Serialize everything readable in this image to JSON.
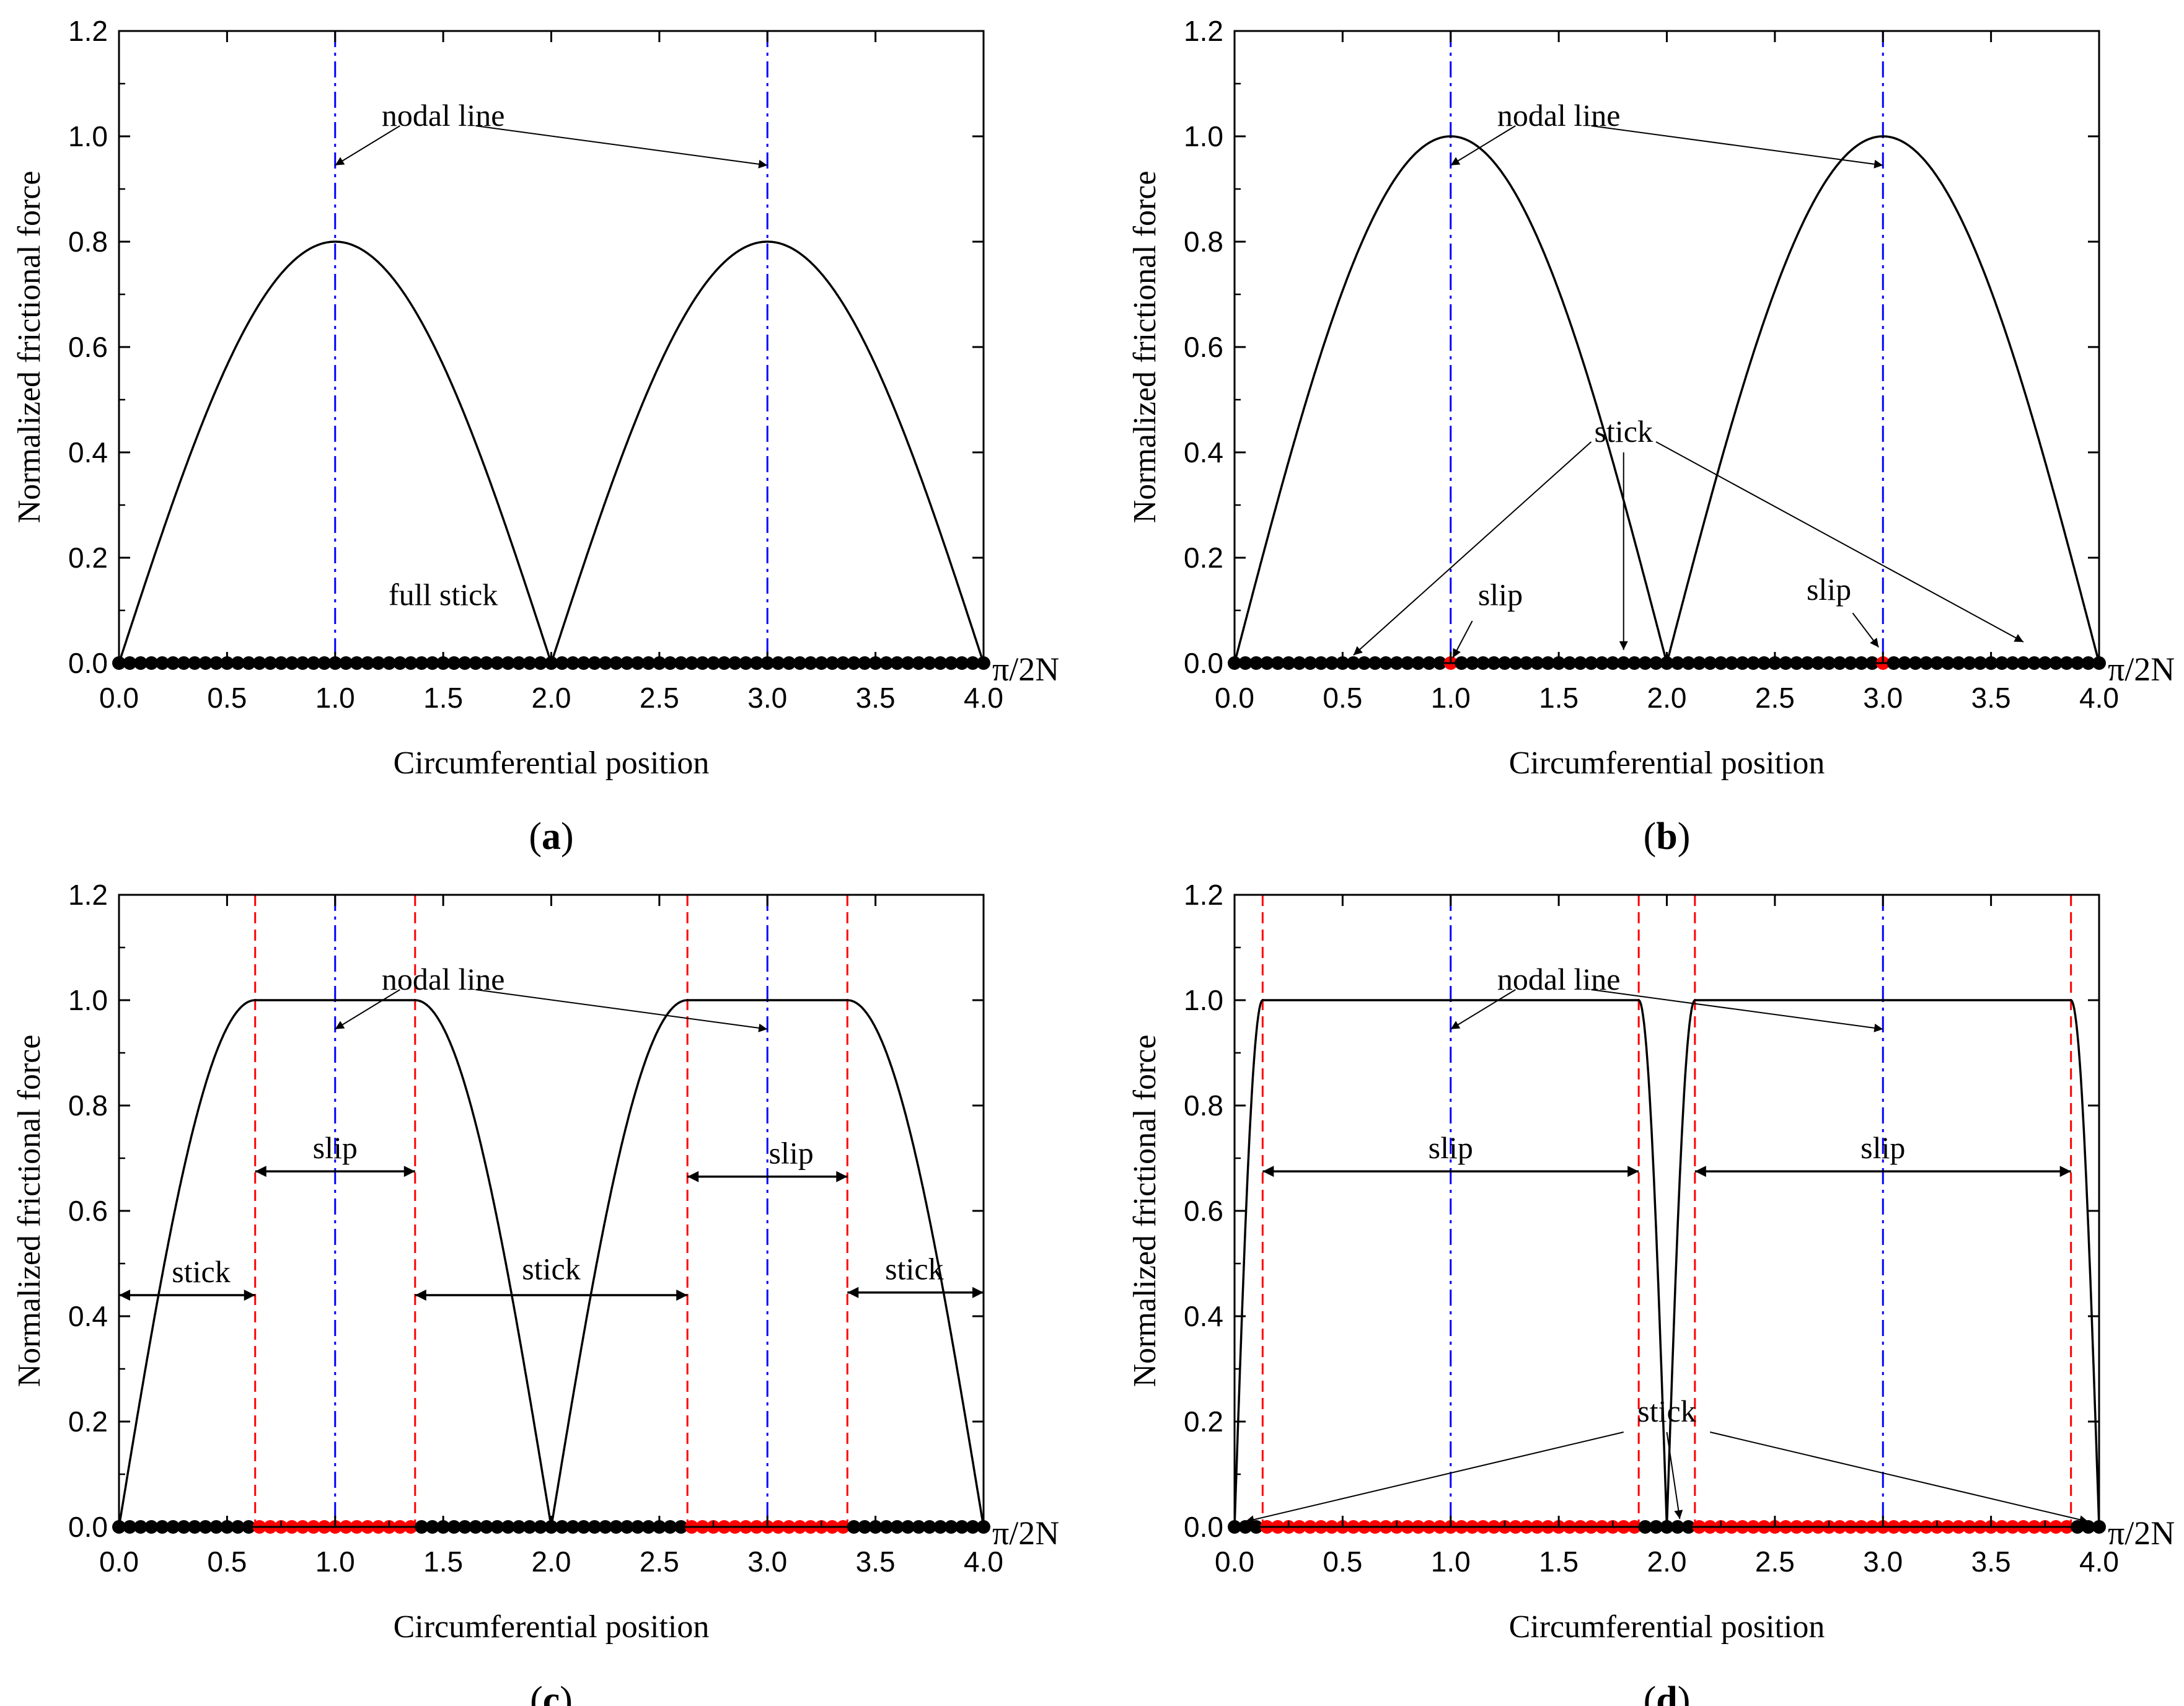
{
  "figure": {
    "colors": {
      "curve": "#000000",
      "nodal_line": "#0000ff",
      "slip_boundary": "#ff0000",
      "stick_marker": "#000000",
      "slip_marker": "#ff0000"
    }
  },
  "chart_data": [
    {
      "type": "line",
      "panel_label": "(a)",
      "label_letter": "a",
      "xlabel": "Circumferential position",
      "ylabel": "Normalized frictional force",
      "x_unit": "π/2N",
      "xlim": [
        0,
        4
      ],
      "ylim": [
        0,
        1.2
      ],
      "x_ticks": [
        "0.0",
        "0.5",
        "1.0",
        "1.5",
        "2.0",
        "2.5",
        "3.0",
        "3.5",
        "4.0"
      ],
      "y_ticks": [
        "0.0",
        "0.2",
        "0.4",
        "0.6",
        "0.8",
        "1.0",
        "1.2"
      ],
      "curve_model": {
        "amplitude": 0.8,
        "slip_width": 0
      },
      "nodal_lines": [
        1,
        3
      ],
      "slip_boundaries": [],
      "slip_zones": [],
      "marker_step": 0.05,
      "annotations": [
        {
          "text": "nodal line",
          "text_x": 1.5,
          "text_y": 1.02,
          "arrows": [
            {
              "from": [
                1.3,
                1.02
              ],
              "to": [
                1.0,
                0.945
              ]
            },
            {
              "from": [
                1.65,
                1.02
              ],
              "to": [
                3.0,
                0.945
              ]
            }
          ]
        },
        {
          "text": "full stick",
          "text_x": 1.5,
          "text_y": 0.11,
          "arrows": []
        }
      ],
      "range_arrows": []
    },
    {
      "type": "line",
      "panel_label": "(b)",
      "label_letter": "b",
      "xlabel": "Circumferential position",
      "ylabel": "Normalized frictional force",
      "x_unit": "π/2N",
      "xlim": [
        0,
        4
      ],
      "ylim": [
        0,
        1.2
      ],
      "x_ticks": [
        "0.0",
        "0.5",
        "1.0",
        "1.5",
        "2.0",
        "2.5",
        "3.0",
        "3.5",
        "4.0"
      ],
      "y_ticks": [
        "0.0",
        "0.2",
        "0.4",
        "0.6",
        "0.8",
        "1.0",
        "1.2"
      ],
      "curve_model": {
        "amplitude": 1.0,
        "slip_width": 0
      },
      "nodal_lines": [
        1,
        3
      ],
      "slip_boundaries": [],
      "slip_zones": [
        [
          1.0,
          1.0
        ],
        [
          3.0,
          3.0
        ]
      ],
      "marker_step": 0.05,
      "annotations": [
        {
          "text": "nodal line",
          "text_x": 1.5,
          "text_y": 1.02,
          "arrows": [
            {
              "from": [
                1.3,
                1.02
              ],
              "to": [
                1.0,
                0.945
              ]
            },
            {
              "from": [
                1.65,
                1.02
              ],
              "to": [
                3.0,
                0.945
              ]
            }
          ]
        },
        {
          "text": "stick",
          "text_x": 1.8,
          "text_y": 0.42,
          "arrows": [
            {
              "from": [
                1.65,
                0.42
              ],
              "to": [
                0.55,
                0.015
              ]
            },
            {
              "from": [
                1.8,
                0.4
              ],
              "to": [
                1.8,
                0.025
              ]
            },
            {
              "from": [
                1.95,
                0.42
              ],
              "to": [
                3.65,
                0.04
              ]
            }
          ]
        },
        {
          "text": "slip",
          "text_x": 1.23,
          "text_y": 0.11,
          "arrows": [
            {
              "from": [
                1.1,
                0.08
              ],
              "to": [
                1.01,
                0.01
              ]
            }
          ]
        },
        {
          "text": "slip",
          "text_x": 2.75,
          "text_y": 0.12,
          "arrows": [
            {
              "from": [
                2.86,
                0.095
              ],
              "to": [
                2.98,
                0.03
              ]
            }
          ]
        }
      ],
      "range_arrows": []
    },
    {
      "type": "line",
      "panel_label": "(c)",
      "label_letter": "c",
      "xlabel": "Circumferential position",
      "ylabel": "Normalized frictional force",
      "x_unit": "π/2N",
      "xlim": [
        0,
        4
      ],
      "ylim": [
        0,
        1.2
      ],
      "x_ticks": [
        "0.0",
        "0.5",
        "1.0",
        "1.5",
        "2.0",
        "2.5",
        "3.0",
        "3.5",
        "4.0"
      ],
      "y_ticks": [
        "0.0",
        "0.2",
        "0.4",
        "0.6",
        "0.8",
        "1.0",
        "1.2"
      ],
      "curve_model": {
        "amplitude": 1.0,
        "slip_width": 0.37
      },
      "nodal_lines": [
        1,
        3
      ],
      "slip_boundaries": [
        0.63,
        1.37,
        2.63,
        3.37
      ],
      "slip_zones": [
        [
          0.63,
          1.37
        ],
        [
          2.63,
          3.37
        ]
      ],
      "marker_step": 0.05,
      "annotations": [
        {
          "text": "nodal line",
          "text_x": 1.5,
          "text_y": 1.02,
          "arrows": [
            {
              "from": [
                1.3,
                1.02
              ],
              "to": [
                1.0,
                0.945
              ]
            },
            {
              "from": [
                1.65,
                1.02
              ],
              "to": [
                3.0,
                0.945
              ]
            }
          ]
        }
      ],
      "range_arrows": [
        {
          "text": "stick",
          "x0": 0.0,
          "x1": 0.63,
          "y": 0.44,
          "text_x": 0.38,
          "text_y": 0.465
        },
        {
          "text": "slip",
          "x0": 0.63,
          "x1": 1.37,
          "y": 0.675,
          "text_x": 1.0,
          "text_y": 0.7
        },
        {
          "text": "stick",
          "x0": 1.37,
          "x1": 2.63,
          "y": 0.44,
          "text_x": 2.0,
          "text_y": 0.47
        },
        {
          "text": "slip",
          "x0": 2.63,
          "x1": 3.37,
          "y": 0.665,
          "text_x": 3.11,
          "text_y": 0.69
        },
        {
          "text": "stick",
          "x0": 3.37,
          "x1": 4.0,
          "y": 0.445,
          "text_x": 3.68,
          "text_y": 0.47
        }
      ]
    },
    {
      "type": "line",
      "panel_label": "(d)",
      "label_letter": "d",
      "xlabel": "Circumferential position",
      "ylabel": "Normalized frictional force",
      "x_unit": "π/2N",
      "xlim": [
        0,
        4
      ],
      "ylim": [
        0,
        1.2
      ],
      "x_ticks": [
        "0.0",
        "0.5",
        "1.0",
        "1.5",
        "2.0",
        "2.5",
        "3.0",
        "3.5",
        "4.0"
      ],
      "y_ticks": [
        "0.0",
        "0.2",
        "0.4",
        "0.6",
        "0.8",
        "1.0",
        "1.2"
      ],
      "curve_model": {
        "amplitude": 1.0,
        "slip_width": 0.87
      },
      "nodal_lines": [
        1,
        3
      ],
      "slip_boundaries": [
        0.13,
        1.87,
        2.13,
        3.87
      ],
      "slip_zones": [
        [
          0.13,
          1.87
        ],
        [
          2.13,
          3.87
        ]
      ],
      "marker_step": 0.05,
      "annotations": [
        {
          "text": "nodal line",
          "text_x": 1.5,
          "text_y": 1.02,
          "arrows": [
            {
              "from": [
                1.3,
                1.02
              ],
              "to": [
                1.0,
                0.945
              ]
            },
            {
              "from": [
                1.65,
                1.02
              ],
              "to": [
                3.0,
                0.945
              ]
            }
          ]
        },
        {
          "text": "stick",
          "text_x": 2.0,
          "text_y": 0.2,
          "arrows": [
            {
              "from": [
                1.8,
                0.18
              ],
              "to": [
                0.05,
                0.01
              ]
            },
            {
              "from": [
                2.0,
                0.18
              ],
              "to": [
                2.06,
                0.015
              ]
            },
            {
              "from": [
                2.2,
                0.18
              ],
              "to": [
                3.95,
                0.01
              ]
            }
          ]
        }
      ],
      "range_arrows": [
        {
          "text": "slip",
          "x0": 0.13,
          "x1": 1.87,
          "y": 0.675,
          "text_x": 1.0,
          "text_y": 0.7
        },
        {
          "text": "slip",
          "x0": 2.13,
          "x1": 3.87,
          "y": 0.675,
          "text_x": 3.0,
          "text_y": 0.7
        }
      ]
    }
  ]
}
